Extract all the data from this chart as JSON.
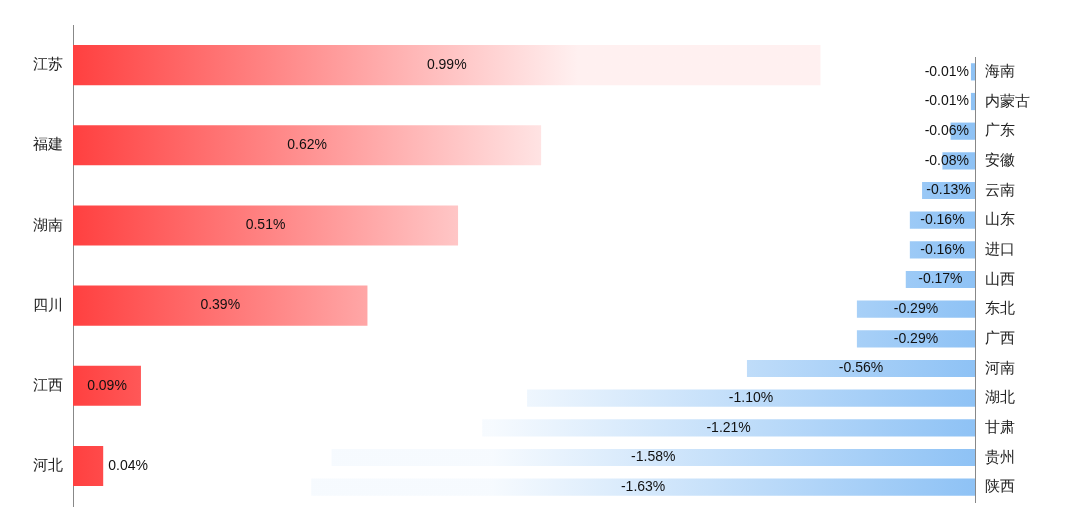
{
  "chart_data": [
    {
      "type": "bar",
      "orientation": "horizontal",
      "categories": [
        "江苏",
        "福建",
        "湖南",
        "四川",
        "江西",
        "河北"
      ],
      "color": "#ff4040",
      "values": [
        0.99,
        0.62,
        0.51,
        0.39,
        0.09,
        0.04
      ],
      "value_labels": [
        "0.99%",
        "0.62%",
        "0.51%",
        "0.39%",
        "0.09%",
        "0.04%"
      ],
      "tick_labels": "y",
      "grid": false,
      "legend": false
    },
    {
      "type": "bar",
      "orientation": "horizontal",
      "categories": [
        "海南",
        "内蒙古",
        "广东",
        "安徽",
        "云南",
        "山东",
        "进口",
        "山西",
        "东北",
        "广西",
        "河南",
        "湖北",
        "甘肃",
        "贵州",
        "陕西"
      ],
      "color": "#8ec2f5",
      "values": [
        -0.01,
        -0.01,
        -0.06,
        -0.08,
        -0.13,
        -0.16,
        -0.16,
        -0.17,
        -0.29,
        -0.29,
        -0.56,
        -1.1,
        -1.21,
        -1.58,
        -1.63
      ],
      "value_labels": [
        "-0.01%",
        "-0.01%",
        "-0.06%",
        "-0.08%",
        "-0.13%",
        "-0.16%",
        "-0.16%",
        "-0.17%",
        "-0.29%",
        "-0.29%",
        "-0.56%",
        "-1.10%",
        "-1.21%",
        "-1.58%",
        "-1.63%"
      ],
      "tick_labels": "y",
      "grid": false,
      "legend": false
    }
  ]
}
